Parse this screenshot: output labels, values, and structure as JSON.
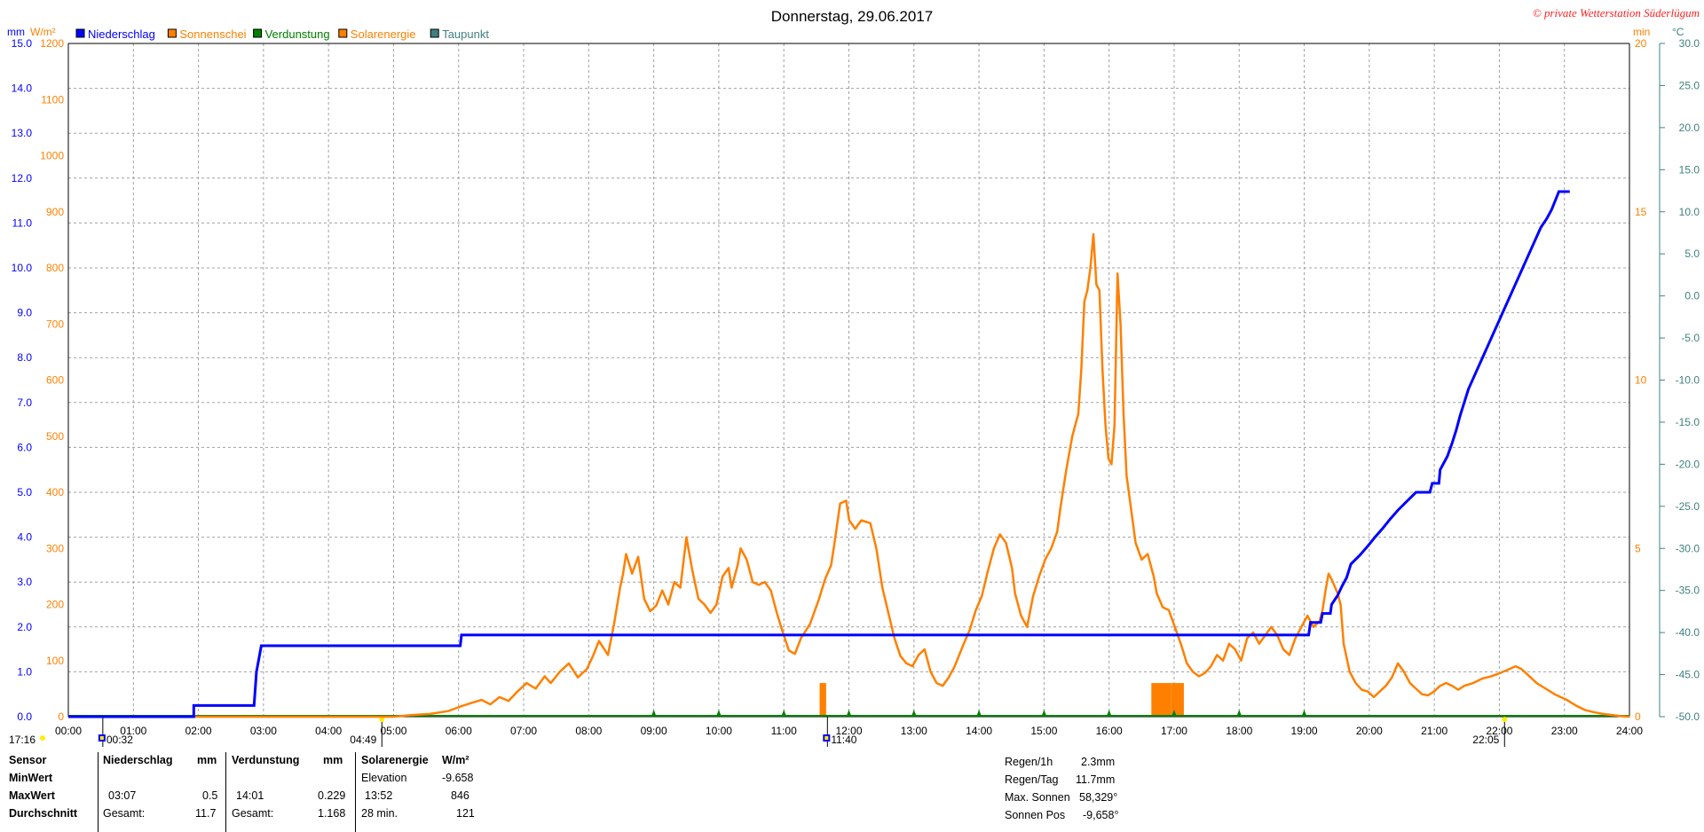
{
  "title": "Donnerstag, 29.06.2017",
  "copyright": "© private Wetterstation Süderlügum",
  "legend": [
    {
      "label": "Niederschlag",
      "color": "#0000ff"
    },
    {
      "label": "Sonnenschei",
      "color": "#ff8000"
    },
    {
      "label": "Verdunstung",
      "color": "#008000"
    },
    {
      "label": "Solarenergie",
      "color": "#ff8000"
    },
    {
      "label": "Taupunkt",
      "color": "#408080"
    }
  ],
  "axes": {
    "left1_unit": "mm",
    "left2_unit": "W/m²",
    "right1_unit": "min",
    "right2_unit": "°C",
    "left1_ticks": [
      "0.0",
      "1.0",
      "2.0",
      "3.0",
      "4.0",
      "5.0",
      "6.0",
      "7.0",
      "8.0",
      "9.0",
      "10.0",
      "11.0",
      "12.0",
      "13.0",
      "14.0",
      "15.0"
    ],
    "left2_ticks": [
      "0",
      "100",
      "200",
      "300",
      "400",
      "500",
      "600",
      "700",
      "800",
      "900",
      "1000",
      "1100",
      "1200"
    ],
    "right1_ticks": [
      "0",
      "5",
      "10",
      "15",
      "20"
    ],
    "right2_ticks": [
      "-50.0",
      "-45.0",
      "-40.0",
      "-35.0",
      "-30.0",
      "-25.0",
      "-20.0",
      "-15.0",
      "-10.0",
      "-5.0",
      "0.0",
      "5.0",
      "10.0",
      "15.0",
      "20.0",
      "25.0",
      "30.0"
    ],
    "x_ticks": [
      "00:00",
      "01:00",
      "02:00",
      "03:00",
      "04:00",
      "05:00",
      "06:00",
      "07:00",
      "08:00",
      "09:00",
      "10:00",
      "11:00",
      "12:00",
      "13:00",
      "14:00",
      "15:00",
      "16:00",
      "17:00",
      "18:00",
      "19:00",
      "20:00",
      "21:00",
      "22:00",
      "23:00",
      "24:00"
    ]
  },
  "markers": {
    "sunset_prev": "17:16",
    "midnight_low": "00:32",
    "sunrise": "04:49",
    "noon": "11:40",
    "sunset": "22:05"
  },
  "chart_data": {
    "type": "line",
    "x_unit": "hours",
    "series": [
      {
        "name": "Niederschlag",
        "axis": "mm",
        "color": "#0000ff",
        "points": [
          [
            0,
            0
          ],
          [
            2.08,
            0
          ],
          [
            2.08,
            0.25
          ],
          [
            3.08,
            0.25
          ],
          [
            3.12,
            1.0
          ],
          [
            3.2,
            1.58
          ],
          [
            6.5,
            1.58
          ],
          [
            6.52,
            1.82
          ],
          [
            20.57,
            1.82
          ],
          [
            20.6,
            2.1
          ],
          [
            20.77,
            2.1
          ],
          [
            20.8,
            2.3
          ],
          [
            20.93,
            2.3
          ],
          [
            20.95,
            2.5
          ],
          [
            21.05,
            2.7
          ],
          [
            21.12,
            2.9
          ],
          [
            21.2,
            3.1
          ],
          [
            21.27,
            3.4
          ],
          [
            21.42,
            3.6
          ],
          [
            21.55,
            3.8
          ],
          [
            21.67,
            4.0
          ],
          [
            21.8,
            4.2
          ],
          [
            21.92,
            4.4
          ],
          [
            22.05,
            4.6
          ],
          [
            22.2,
            4.8
          ],
          [
            22.35,
            5.0
          ],
          [
            22.58,
            5.0
          ],
          [
            22.62,
            5.2
          ],
          [
            22.73,
            5.2
          ],
          [
            22.75,
            5.5
          ],
          [
            22.87,
            5.8
          ],
          [
            22.95,
            6.1
          ],
          [
            23.02,
            6.4
          ],
          [
            23.08,
            6.7
          ],
          [
            23.15,
            7.0
          ],
          [
            23.22,
            7.3
          ],
          [
            23.32,
            7.6
          ],
          [
            23.42,
            7.9
          ],
          [
            23.52,
            8.2
          ],
          [
            23.62,
            8.5
          ],
          [
            23.72,
            8.8
          ],
          [
            23.82,
            9.1
          ],
          [
            23.92,
            9.4
          ],
          [
            24.02,
            9.7
          ],
          [
            24.12,
            10.0
          ],
          [
            24.22,
            10.3
          ],
          [
            24.32,
            10.6
          ],
          [
            24.42,
            10.9
          ],
          [
            24.52,
            11.1
          ],
          [
            24.6,
            11.3
          ],
          [
            24.72,
            11.7
          ],
          [
            24.9,
            11.7
          ]
        ]
      },
      {
        "name": "Solarenergie",
        "axis": "W/m²",
        "color": "#ff8000",
        "points": [
          [
            0,
            0
          ],
          [
            5.4,
            0
          ],
          [
            5.7,
            3
          ],
          [
            6.0,
            5
          ],
          [
            6.3,
            10
          ],
          [
            6.5,
            18
          ],
          [
            6.7,
            25
          ],
          [
            6.85,
            30
          ],
          [
            7.0,
            22
          ],
          [
            7.15,
            35
          ],
          [
            7.3,
            28
          ],
          [
            7.45,
            45
          ],
          [
            7.6,
            60
          ],
          [
            7.75,
            50
          ],
          [
            7.9,
            72
          ],
          [
            8.0,
            60
          ],
          [
            8.15,
            80
          ],
          [
            8.3,
            95
          ],
          [
            8.45,
            70
          ],
          [
            8.6,
            85
          ],
          [
            8.7,
            108
          ],
          [
            8.8,
            135
          ],
          [
            8.95,
            110
          ],
          [
            9.05,
            165
          ],
          [
            9.15,
            230
          ],
          [
            9.2,
            255
          ],
          [
            9.25,
            290
          ],
          [
            9.35,
            255
          ],
          [
            9.45,
            285
          ],
          [
            9.55,
            210
          ],
          [
            9.65,
            188
          ],
          [
            9.75,
            198
          ],
          [
            9.85,
            225
          ],
          [
            9.95,
            200
          ],
          [
            10.05,
            240
          ],
          [
            10.15,
            230
          ],
          [
            10.25,
            320
          ],
          [
            10.35,
            260
          ],
          [
            10.45,
            210
          ],
          [
            10.55,
            200
          ],
          [
            10.65,
            185
          ],
          [
            10.75,
            200
          ],
          [
            10.85,
            250
          ],
          [
            10.95,
            265
          ],
          [
            11.0,
            230
          ],
          [
            11.1,
            270
          ],
          [
            11.15,
            300
          ],
          [
            11.25,
            280
          ],
          [
            11.35,
            240
          ],
          [
            11.45,
            235
          ],
          [
            11.55,
            240
          ],
          [
            11.65,
            225
          ],
          [
            11.75,
            185
          ],
          [
            11.85,
            150
          ],
          [
            11.95,
            118
          ],
          [
            12.05,
            112
          ],
          [
            12.15,
            140
          ],
          [
            12.3,
            165
          ],
          [
            12.45,
            210
          ],
          [
            12.55,
            245
          ],
          [
            12.65,
            270
          ],
          [
            12.7,
            305
          ],
          [
            12.8,
            380
          ],
          [
            12.9,
            385
          ],
          [
            12.95,
            350
          ],
          [
            13.05,
            335
          ],
          [
            13.15,
            350
          ],
          [
            13.3,
            345
          ],
          [
            13.4,
            300
          ],
          [
            13.5,
            230
          ],
          [
            13.6,
            185
          ],
          [
            13.7,
            140
          ],
          [
            13.8,
            108
          ],
          [
            13.9,
            95
          ],
          [
            14.0,
            90
          ],
          [
            14.1,
            110
          ],
          [
            14.2,
            120
          ],
          [
            14.3,
            80
          ],
          [
            14.4,
            60
          ],
          [
            14.5,
            55
          ],
          [
            14.6,
            70
          ],
          [
            14.7,
            90
          ],
          [
            14.85,
            130
          ],
          [
            14.95,
            155
          ],
          [
            15.05,
            190
          ],
          [
            15.15,
            215
          ],
          [
            15.25,
            260
          ],
          [
            15.35,
            300
          ],
          [
            15.45,
            325
          ],
          [
            15.55,
            310
          ],
          [
            15.65,
            265
          ],
          [
            15.7,
            220
          ],
          [
            15.8,
            180
          ],
          [
            15.9,
            160
          ],
          [
            16.0,
            215
          ],
          [
            16.1,
            250
          ],
          [
            16.2,
            280
          ],
          [
            16.3,
            300
          ],
          [
            16.4,
            330
          ],
          [
            16.45,
            370
          ],
          [
            16.55,
            440
          ],
          [
            16.65,
            500
          ],
          [
            16.75,
            540
          ],
          [
            16.8,
            620
          ],
          [
            16.85,
            740
          ],
          [
            16.9,
            760
          ],
          [
            16.95,
            800
          ],
          [
            17.0,
            860
          ],
          [
            17.05,
            770
          ],
          [
            17.1,
            760
          ],
          [
            17.15,
            620
          ],
          [
            17.2,
            520
          ],
          [
            17.25,
            460
          ],
          [
            17.3,
            450
          ],
          [
            17.35,
            520
          ],
          [
            17.4,
            790
          ],
          [
            17.45,
            700
          ],
          [
            17.5,
            540
          ],
          [
            17.55,
            430
          ],
          [
            17.6,
            390
          ],
          [
            17.7,
            310
          ],
          [
            17.8,
            280
          ],
          [
            17.9,
            290
          ],
          [
            18.0,
            250
          ],
          [
            18.05,
            220
          ],
          [
            18.15,
            195
          ],
          [
            18.25,
            190
          ],
          [
            18.35,
            160
          ],
          [
            18.45,
            130
          ],
          [
            18.55,
            95
          ],
          [
            18.65,
            80
          ],
          [
            18.75,
            72
          ],
          [
            18.85,
            78
          ],
          [
            18.95,
            90
          ],
          [
            19.05,
            110
          ],
          [
            19.15,
            100
          ],
          [
            19.25,
            130
          ],
          [
            19.35,
            120
          ],
          [
            19.45,
            100
          ],
          [
            19.55,
            140
          ],
          [
            19.65,
            150
          ],
          [
            19.75,
            130
          ],
          [
            19.85,
            145
          ],
          [
            19.95,
            160
          ],
          [
            20.05,
            145
          ],
          [
            20.15,
            120
          ],
          [
            20.25,
            110
          ],
          [
            20.35,
            140
          ],
          [
            20.45,
            160
          ],
          [
            20.55,
            180
          ],
          [
            20.65,
            160
          ],
          [
            20.75,
            170
          ],
          [
            20.8,
            190
          ],
          [
            20.85,
            225
          ],
          [
            20.9,
            255
          ],
          [
            20.95,
            245
          ],
          [
            21.05,
            220
          ],
          [
            21.1,
            200
          ],
          [
            21.15,
            130
          ],
          [
            21.25,
            80
          ],
          [
            21.35,
            60
          ],
          [
            21.45,
            48
          ],
          [
            21.55,
            45
          ],
          [
            21.65,
            35
          ],
          [
            21.75,
            45
          ],
          [
            21.85,
            55
          ],
          [
            21.95,
            70
          ],
          [
            22.05,
            95
          ],
          [
            22.15,
            80
          ],
          [
            22.25,
            60
          ],
          [
            22.35,
            50
          ],
          [
            22.45,
            40
          ],
          [
            22.55,
            38
          ],
          [
            22.65,
            45
          ],
          [
            22.75,
            55
          ],
          [
            22.85,
            60
          ],
          [
            22.95,
            55
          ],
          [
            23.05,
            48
          ],
          [
            23.15,
            55
          ],
          [
            23.3,
            60
          ],
          [
            23.45,
            68
          ],
          [
            23.6,
            72
          ],
          [
            23.75,
            78
          ],
          [
            23.9,
            85
          ],
          [
            24.0,
            90
          ],
          [
            24.1,
            85
          ],
          [
            24.25,
            70
          ],
          [
            24.35,
            60
          ],
          [
            24.5,
            50
          ],
          [
            24.65,
            40
          ],
          [
            24.85,
            30
          ],
          [
            25.0,
            20
          ],
          [
            25.15,
            12
          ],
          [
            25.3,
            8
          ],
          [
            25.45,
            5
          ],
          [
            25.6,
            3
          ],
          [
            25.75,
            1
          ],
          [
            25.9,
            0
          ]
        ]
      },
      {
        "name": "Sonnenschei",
        "axis": "min",
        "type": "bar",
        "color": "#ff8000",
        "bars": [
          [
            11.55,
            0.1,
            1.0
          ],
          [
            16.65,
            0.3,
            1.0
          ],
          [
            16.95,
            0.2,
            1.0
          ]
        ]
      },
      {
        "name": "Verdunstung",
        "axis": "mm",
        "color": "#008000",
        "points": [
          [
            9.0,
            0.02
          ],
          [
            10.0,
            0.03
          ],
          [
            11.0,
            0.03
          ],
          [
            12.0,
            0.04
          ],
          [
            13.0,
            0.02
          ],
          [
            14.0,
            0.05
          ],
          [
            15.0,
            0.04
          ],
          [
            16.0,
            0.02
          ],
          [
            17.0,
            0.02
          ],
          [
            18.0,
            0.01
          ],
          [
            19.0,
            0.01
          ]
        ]
      }
    ]
  },
  "table": {
    "headers": [
      "Sensor",
      "Niederschlag",
      "mm",
      "Verdunstung",
      "mm",
      "Solarenergie",
      "W/m²"
    ],
    "rows": [
      {
        "label": "MinWert",
        "c1": "",
        "c2": "",
        "c3": "",
        "c4": "",
        "c5": "Elevation",
        "c6": "-9.658"
      },
      {
        "label": "MaxWert",
        "c1": "03:07",
        "c2": "0.5",
        "c3": "14:01",
        "c4": "0.229",
        "c5": "13:52",
        "c6": "846"
      },
      {
        "label": "Durchschnitt",
        "c1": "Gesamt:",
        "c2": "11.7",
        "c3": "Gesamt:",
        "c4": "1.168",
        "c5": "28 min.",
        "c6": "121"
      }
    ]
  },
  "summary": [
    {
      "label": "Regen/1h",
      "value": "2.3mm"
    },
    {
      "label": "Regen/Tag",
      "value": "11.7mm"
    },
    {
      "label": "Max. Sonnen",
      "value": "58,329°"
    },
    {
      "label": "Sonnen Pos",
      "value": "-9,658°"
    }
  ]
}
